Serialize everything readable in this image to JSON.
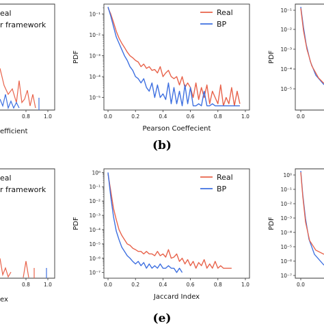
{
  "colors": {
    "real": "#e8624a",
    "bp": "#3d6fe0",
    "axis": "#333333"
  },
  "panel_letters": [
    "(b)",
    "(e)"
  ],
  "left_fragments": {
    "top": {
      "legend": [
        "eal",
        "r framework"
      ],
      "xticks": [
        "0.8",
        "1.0"
      ],
      "xlabel": "efficient"
    },
    "bottom": {
      "legend": [
        "eal",
        "r framework"
      ],
      "xticks": [
        "0.8",
        "1.0"
      ],
      "xlabel": "ex"
    }
  },
  "right_fragments": {
    "top": {
      "ylabel": "PDF",
      "yticks": [
        "10⁻¹",
        "10⁻²",
        "10⁻³",
        "10⁻⁴",
        "10⁻⁵"
      ],
      "xticks": [
        "0.0"
      ]
    },
    "bottom": {
      "ylabel": "PDF",
      "yticks": [
        "10⁰",
        "10⁻¹",
        "10⁻²",
        "10⁻³",
        "10⁻⁴",
        "10⁻⁵",
        "10⁻⁶",
        "10⁻⁷"
      ],
      "xticks": [
        "0.0"
      ]
    }
  },
  "chart_data": [
    {
      "type": "line",
      "xlabel": "Pearson Coeffecient",
      "ylabel": "PDF",
      "yscale": "log",
      "xlim": [
        -0.03,
        1.03
      ],
      "ylim": [
        2.5e-06,
        0.3
      ],
      "xticks": [
        0.0,
        0.2,
        0.4,
        0.6,
        0.8,
        1.0
      ],
      "xtick_labels": [
        "0.0",
        "0.2",
        "0.4",
        "0.6",
        "0.8",
        "1.0"
      ],
      "yticks": [
        0.1,
        0.01,
        0.001,
        0.0001,
        1e-05
      ],
      "ytick_labels": [
        "10⁻¹",
        "10⁻²",
        "10⁻³",
        "10⁻⁴",
        "10⁻⁵"
      ],
      "legend_position": "top-right",
      "series": [
        {
          "name": "Real",
          "color": "#e8624a",
          "x": [
            0.0,
            0.02,
            0.04,
            0.06,
            0.08,
            0.1,
            0.12,
            0.14,
            0.16,
            0.18,
            0.2,
            0.22,
            0.24,
            0.26,
            0.28,
            0.3,
            0.32,
            0.34,
            0.36,
            0.38,
            0.4,
            0.42,
            0.44,
            0.46,
            0.48,
            0.5,
            0.52,
            0.54,
            0.56,
            0.58,
            0.6,
            0.62,
            0.64,
            0.66,
            0.68,
            0.7,
            0.72,
            0.74,
            0.76,
            0.78,
            0.8,
            0.82,
            0.84,
            0.86,
            0.88,
            0.9,
            0.92,
            0.94,
            0.96
          ],
          "y": [
            0.2,
            0.1,
            0.04,
            0.015,
            0.007,
            0.004,
            0.0025,
            0.0015,
            0.001,
            0.0008,
            0.0006,
            0.0005,
            0.0003,
            0.0004,
            0.00025,
            0.0003,
            0.0002,
            0.00022,
            0.00015,
            0.0003,
            0.0001,
            0.00015,
            0.0002,
            0.0001,
            8e-05,
            0.0001,
            4e-05,
            0.0001,
            3e-05,
            5e-05,
            3e-05,
            1e-05,
            5e-05,
            8e-06,
            3e-05,
            1e-05,
            4e-05,
            5e-06,
            2e-05,
            1e-05,
            5e-06,
            4e-05,
            4e-06,
            1e-05,
            5e-06,
            3e-05,
            4e-06,
            2e-05,
            5e-06
          ]
        },
        {
          "name": "BP",
          "color": "#3d6fe0",
          "x": [
            0.0,
            0.02,
            0.04,
            0.06,
            0.08,
            0.1,
            0.12,
            0.14,
            0.16,
            0.18,
            0.2,
            0.22,
            0.24,
            0.26,
            0.28,
            0.3,
            0.32,
            0.34,
            0.36,
            0.38,
            0.4,
            0.42,
            0.44,
            0.46,
            0.48,
            0.5,
            0.52,
            0.54,
            0.56,
            0.58,
            0.6,
            0.62,
            0.64,
            0.66,
            0.68,
            0.7,
            0.72,
            0.74,
            0.76,
            0.78,
            0.8,
            0.82,
            0.84,
            0.86,
            0.88,
            0.9,
            0.92,
            0.94,
            0.96
          ],
          "y": [
            0.22,
            0.08,
            0.025,
            0.008,
            0.004,
            0.002,
            0.001,
            0.0006,
            0.0003,
            0.0002,
            0.0001,
            8e-05,
            5e-05,
            8e-05,
            3e-05,
            2e-05,
            5e-05,
            1e-05,
            4e-05,
            1e-05,
            1.5e-05,
            8e-06,
            5e-05,
            5e-06,
            3e-05,
            5e-06,
            2e-05,
            4e-06,
            4e-05,
            5e-06,
            3e-05,
            4e-06,
            4e-06,
            5e-06,
            4e-06,
            2e-05,
            4e-06,
            4e-06,
            5e-06,
            4e-06,
            4e-06,
            4e-06,
            4e-06,
            4e-06,
            4e-06,
            4e-06,
            4e-06,
            4e-06,
            4e-06
          ]
        }
      ]
    },
    {
      "type": "line",
      "xlabel": "Jaccard Index",
      "ylabel": "PDF",
      "yscale": "log",
      "xlim": [
        -0.03,
        1.03
      ],
      "ylim": [
        4e-08,
        1.8
      ],
      "xticks": [
        0.0,
        0.2,
        0.4,
        0.6,
        0.8,
        1.0
      ],
      "xtick_labels": [
        "0.0",
        "0.2",
        "0.4",
        "0.6",
        "0.8",
        "1.0"
      ],
      "yticks": [
        1,
        0.1,
        0.01,
        0.001,
        0.0001,
        1e-05,
        1e-06,
        1e-07
      ],
      "ytick_labels": [
        "10⁰",
        "10⁻¹",
        "10⁻²",
        "10⁻³",
        "10⁻⁴",
        "10⁻⁵",
        "10⁻⁶",
        "10⁻⁷"
      ],
      "legend_position": "top-right",
      "series": [
        {
          "name": "Real",
          "color": "#e8624a",
          "x": [
            0.0,
            0.02,
            0.04,
            0.06,
            0.08,
            0.1,
            0.12,
            0.14,
            0.16,
            0.18,
            0.2,
            0.22,
            0.24,
            0.26,
            0.28,
            0.3,
            0.32,
            0.34,
            0.36,
            0.38,
            0.4,
            0.42,
            0.44,
            0.46,
            0.48,
            0.5,
            0.52,
            0.54,
            0.56,
            0.58,
            0.6,
            0.62,
            0.64,
            0.66,
            0.68,
            0.7,
            0.72,
            0.74,
            0.76,
            0.78,
            0.8,
            0.82,
            0.84,
            0.86,
            0.88,
            0.9
          ],
          "y": [
            0.8,
            0.05,
            0.003,
            0.0005,
            0.0001,
            4e-05,
            2e-05,
            1e-05,
            8e-06,
            5e-06,
            4e-06,
            3e-06,
            3e-06,
            2e-06,
            3e-06,
            2e-06,
            2e-06,
            1.5e-06,
            3e-06,
            1.5e-06,
            2e-06,
            1.2e-06,
            4e-06,
            1e-06,
            1.2e-06,
            2e-06,
            6e-07,
            1e-06,
            4e-07,
            8e-07,
            3e-07,
            6e-07,
            2e-07,
            5e-07,
            3e-07,
            8e-07,
            2e-07,
            4e-07,
            2e-07,
            6e-07,
            2e-07,
            3e-07,
            2e-07,
            2e-07,
            2e-07,
            2e-07
          ]
        },
        {
          "name": "BP",
          "color": "#3d6fe0",
          "x": [
            0.0,
            0.02,
            0.04,
            0.06,
            0.08,
            0.1,
            0.12,
            0.14,
            0.16,
            0.18,
            0.2,
            0.22,
            0.24,
            0.26,
            0.28,
            0.3,
            0.32,
            0.34,
            0.36,
            0.38,
            0.4,
            0.42,
            0.44,
            0.46,
            0.48,
            0.5,
            0.52,
            0.54
          ],
          "y": [
            1.0,
            0.02,
            0.0008,
            8e-05,
            2e-05,
            6e-06,
            3e-06,
            1.5e-06,
            1e-06,
            6e-07,
            4e-07,
            6e-07,
            3e-07,
            5e-07,
            2e-07,
            4e-07,
            2e-07,
            3e-07,
            2e-07,
            4e-07,
            2e-07,
            2e-07,
            3e-07,
            2e-07,
            2e-07,
            1e-07,
            2e-07,
            1e-07
          ]
        }
      ]
    }
  ]
}
